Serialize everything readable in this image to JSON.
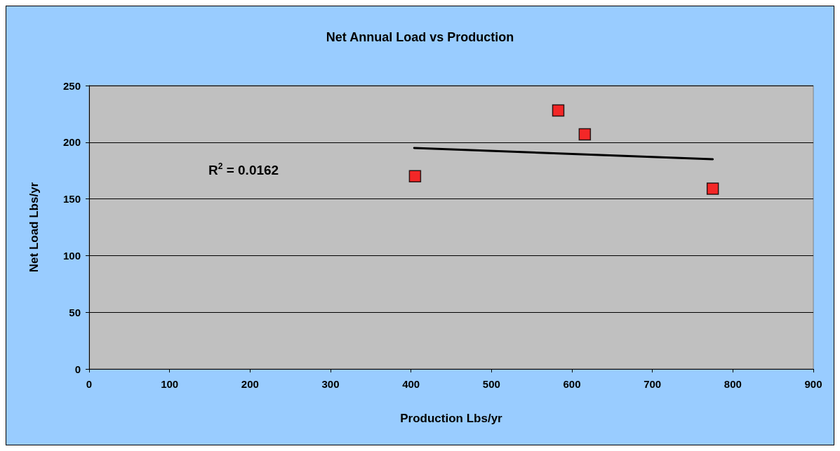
{
  "chart_data": {
    "type": "scatter",
    "title": "Net Annual Load vs Production",
    "xlabel": "Production Lbs/yr",
    "ylabel": "Net Load Lbs/yr",
    "series": [
      {
        "color": "#ff0000",
        "marker": "square",
        "x": [
          405,
          583,
          616,
          775
        ],
        "values": [
          170,
          228,
          207,
          159
        ]
      },
      {
        "type": "line",
        "color": "#000000",
        "marker": "none",
        "line_style": "solid",
        "x": [
          404,
          775
        ],
        "values": [
          195,
          185
        ]
      }
    ],
    "annotations": [
      "R$^{2}$ = 0.0162"
    ],
    "xlim": [
      0,
      900
    ],
    "xticks": [
      0,
      100,
      200,
      300,
      400,
      500,
      600,
      700,
      800,
      900
    ],
    "ylim": [
      0,
      250
    ],
    "yticks": [
      0,
      50,
      100,
      150,
      200,
      250
    ],
    "grid": "y"
  }
}
